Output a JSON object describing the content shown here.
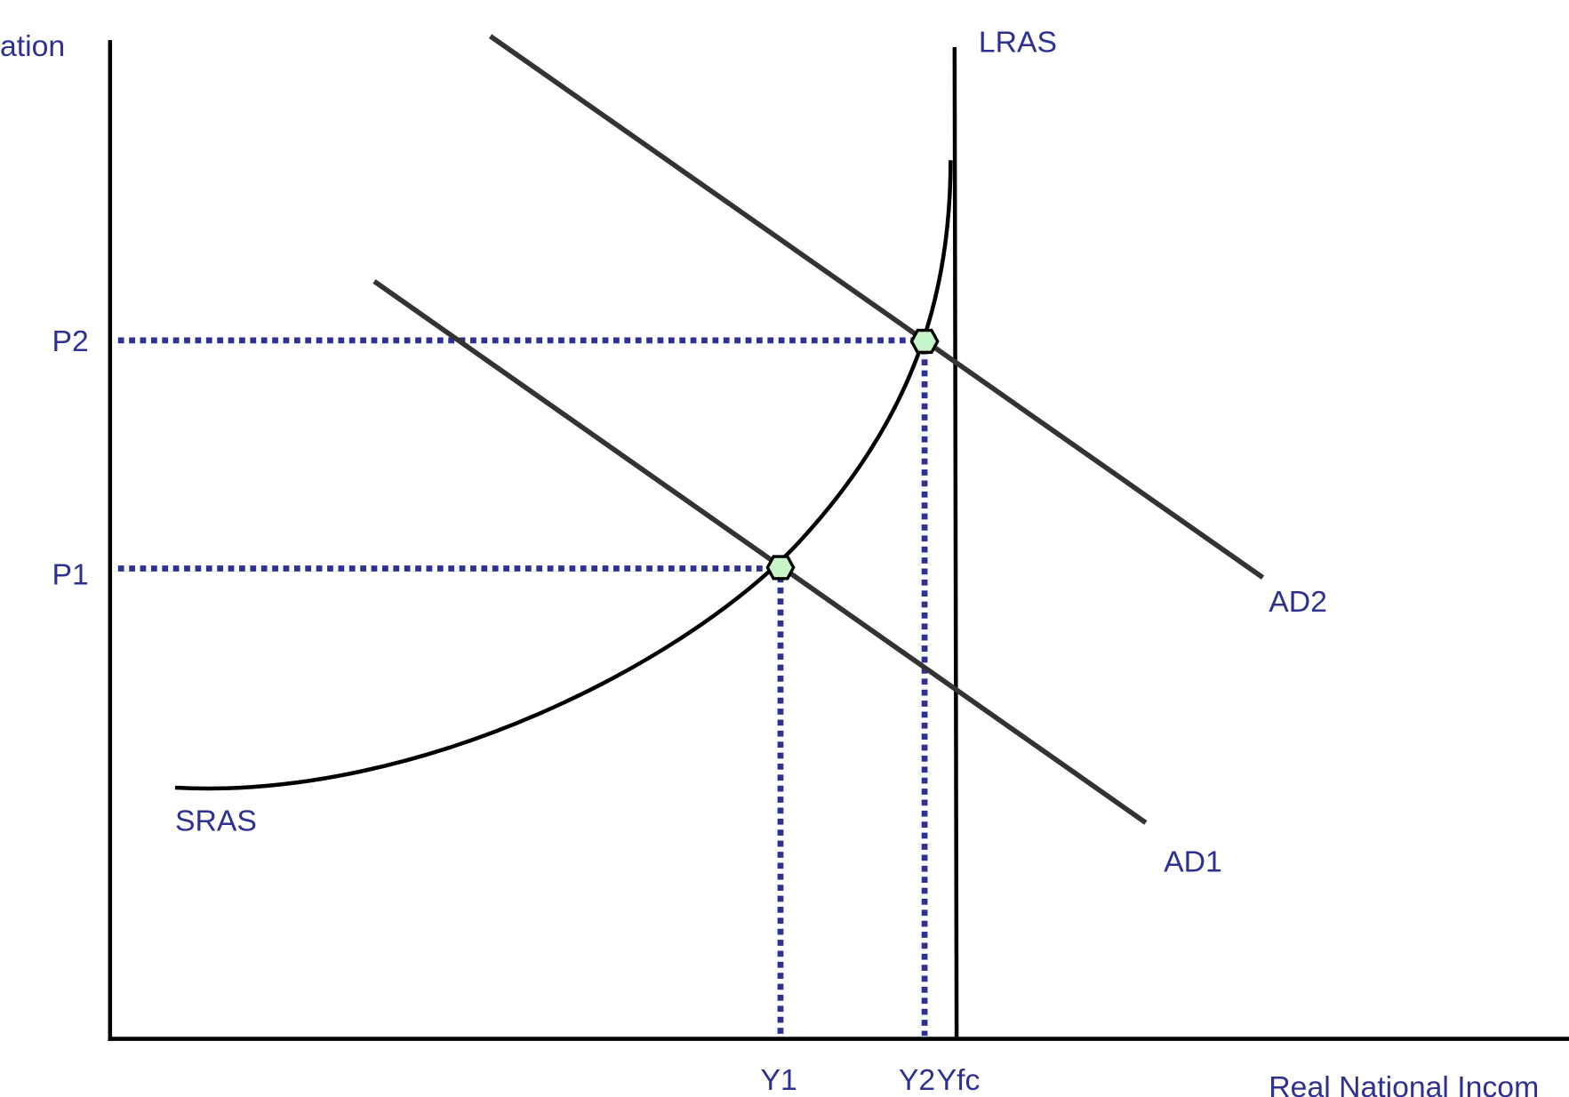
{
  "axes": {
    "y_label": "ation",
    "x_label": "Real National Incom"
  },
  "curves": {
    "lras": "LRAS",
    "sras": "SRAS",
    "ad1": "AD1",
    "ad2": "AD2"
  },
  "price_levels": {
    "p1": "P1",
    "p2": "P2"
  },
  "outputs": {
    "y1": "Y1",
    "y2": "Y2",
    "yfc": "Yfc"
  }
}
